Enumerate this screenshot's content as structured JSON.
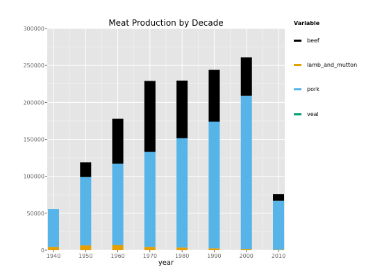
{
  "chart_data": {
    "type": "bar",
    "stacked": true,
    "title": "Meat Production by Decade",
    "xlabel": "year",
    "ylabel": "",
    "categories": [
      "1940",
      "1950",
      "1960",
      "1970",
      "1980",
      "1990",
      "2000",
      "2010"
    ],
    "series": [
      {
        "name": "beef",
        "color": "#000000",
        "values": [
          0,
          20000,
          61000,
          96000,
          78000,
          70000,
          52000,
          9000
        ]
      },
      {
        "name": "lamb_and_mutton",
        "color": "#E69F00",
        "values": [
          4500,
          6500,
          7000,
          4500,
          3500,
          2500,
          1500,
          600
        ]
      },
      {
        "name": "pork",
        "color": "#56B4E9",
        "values": [
          51000,
          92500,
          110000,
          128500,
          148000,
          171500,
          207500,
          66400
        ]
      },
      {
        "name": "veal",
        "color": "#009E73",
        "values": [
          0,
          0,
          0,
          0,
          0,
          0,
          0,
          0
        ]
      }
    ],
    "stack_order": [
      "lamb_and_mutton",
      "pork",
      "beef",
      "veal"
    ],
    "ylim": [
      0,
      300000
    ],
    "yticks": [
      0,
      50000,
      100000,
      150000,
      200000,
      250000,
      300000
    ],
    "xticks": [
      "1940",
      "1950",
      "1960",
      "1970",
      "1980",
      "1990",
      "2000",
      "2010"
    ],
    "grid": true,
    "legend": {
      "title": "Variable",
      "position": "right"
    },
    "background": "#E5E5E5",
    "grid_color": "#FFFFFF"
  }
}
